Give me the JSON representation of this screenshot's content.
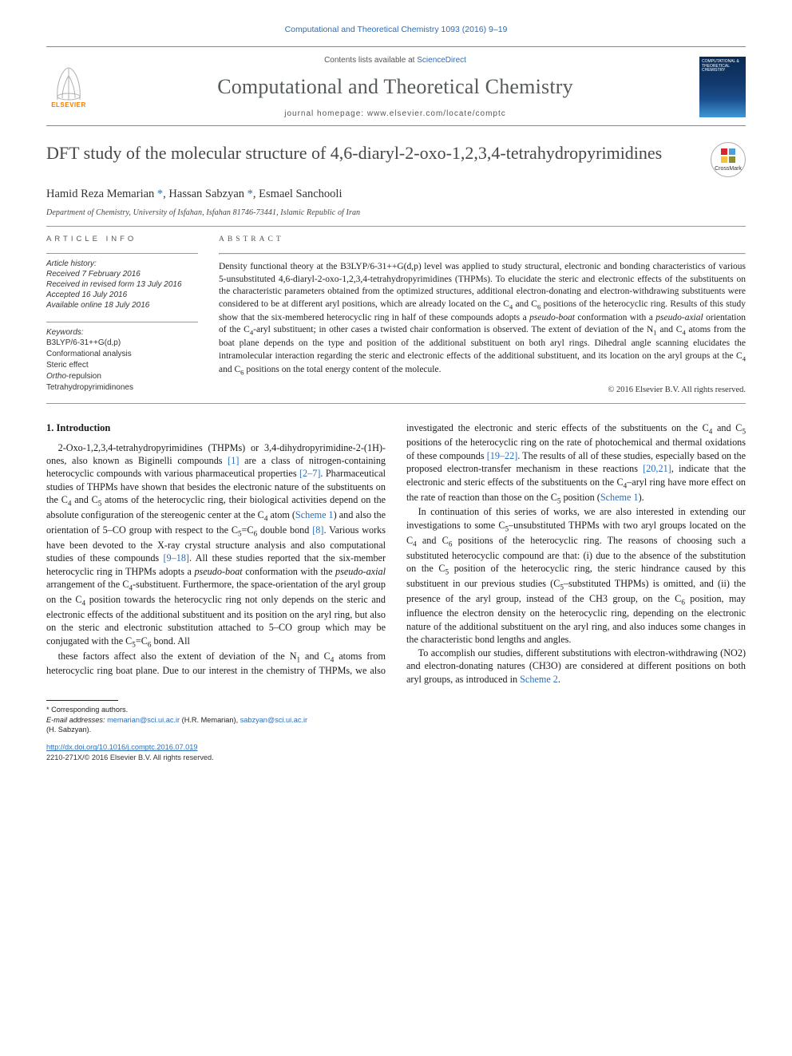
{
  "citation": "Computational and Theoretical Chemistry 1093 (2016) 9–19",
  "masthead": {
    "contents_prefix": "Contents lists available at ",
    "contents_link": "ScienceDirect",
    "journal_name": "Computational and Theoretical Chemistry",
    "homepage_label": "journal homepage: www.elsevier.com/locate/comptc",
    "publisher_name": "ELSEVIER",
    "cover_text": "COMPUTATIONAL & THEORETICAL CHEMISTRY"
  },
  "crossmark_label": "CrossMark",
  "title": "DFT study of the molecular structure of 4,6-diaryl-2-oxo-1,2,3,4-tetrahydropyrimidines",
  "authors_html": "Hamid Reza Memarian <a class='ref' href='#'>*</a>, Hassan Sabzyan <a class='ref' href='#'>*</a>, Esmael Sanchooli",
  "affiliation": "Department of Chemistry, University of Isfahan, Isfahan 81746-73441, Islamic Republic of Iran",
  "info": {
    "heading": "ARTICLE INFO",
    "history_label": "Article history:",
    "history": [
      "Received 7 February 2016",
      "Received in revised form 13 July 2016",
      "Accepted 16 July 2016",
      "Available online 18 July 2016"
    ],
    "keywords_label": "Keywords:",
    "keywords": [
      "B3LYP/6-31++G(d,p)",
      "Conformational analysis",
      "Steric effect",
      "Ortho-repulsion",
      "Tetrahydropyrimidinones"
    ]
  },
  "abstract": {
    "heading": "ABSTRACT",
    "text": "Density functional theory at the B3LYP/6-31++G(d,p) level was applied to study structural, electronic and bonding characteristics of various 5-unsubstituted 4,6-diaryl-2-oxo-1,2,3,4-tetrahydropyrimidines (THPMs). To elucidate the steric and electronic effects of the substituents on the characteristic parameters obtained from the optimized structures, additional electron-donating and electron-withdrawing substituents were considered to be at different aryl positions, which are already located on the C4 and C6 positions of the heterocyclic ring. Results of this study show that the six-membered heterocyclic ring in half of these compounds adopts a pseudo-boat conformation with a pseudo-axial orientation of the C4-aryl substituent; in other cases a twisted chair conformation is observed. The extent of deviation of the N1 and C4 atoms from the boat plane depends on the type and position of the additional substituent on both aryl rings. Dihedral angle scanning elucidates the intramolecular interaction regarding the steric and electronic effects of the additional substituent, and its location on the aryl groups at the C4 and C6 positions on the total energy content of the molecule.",
    "copyright": "© 2016 Elsevier B.V. All rights reserved."
  },
  "body": {
    "section1_heading": "1. Introduction",
    "p1": "2-Oxo-1,2,3,4-tetrahydropyrimidines (THPMs) or 3,4-dihydropyrimidine-2-(1H)-ones, also known as Biginelli compounds [1] are a class of nitrogen-containing heterocyclic compounds with various pharmaceutical properties [2–7]. Pharmaceutical studies of THPMs have shown that besides the electronic nature of the substituents on the C4 and C5 atoms of the heterocyclic ring, their biological activities depend on the absolute configuration of the stereogenic center at the C4 atom (Scheme 1) and also the orientation of 5–CO group with respect to the C5=C6 double bond [8]. Various works have been devoted to the X-ray crystal structure analysis and also computational studies of these compounds [9–18]. All these studies reported that the six-member heterocyclic ring in THPMs adopts a pseudo-boat conformation with the pseudo-axial arrangement of the C4-substituent. Furthermore, the space-orientation of the aryl group on the C4 position towards the heterocyclic ring not only depends on the steric and electronic effects of the additional substituent and its position on the aryl ring, but also on the steric and electronic substitution attached to 5–CO group which may be conjugated with the C5=C6 bond. All",
    "p2": "these factors affect also the extent of deviation of the N1 and C4 atoms from heterocyclic ring boat plane. Due to our interest in the chemistry of THPMs, we also investigated the electronic and steric effects of the substituents on the C4 and C5 positions of the heterocyclic ring on the rate of photochemical and thermal oxidations of these compounds [19–22]. The results of all of these studies, especially based on the proposed electron-transfer mechanism in these reactions [20,21], indicate that the electronic and steric effects of the substituents on the C4–aryl ring have more effect on the rate of reaction than those on the C5 position (Scheme 1).",
    "p3": "In continuation of this series of works, we are also interested in extending our investigations to some C5–unsubstituted THPMs with two aryl groups located on the C4 and C6 positions of the heterocyclic ring. The reasons of choosing such a substituted heterocyclic compound are that: (i) due to the absence of the substitution on the C5 position of the heterocyclic ring, the steric hindrance caused by this substituent in our previous studies (C5–substituted THPMs) is omitted, and (ii) the presence of the aryl group, instead of the CH3 group, on the C6 position, may influence the electron density on the heterocyclic ring, depending on the electronic nature of the additional substituent on the aryl ring, and also induces some changes in the characteristic bond lengths and angles.",
    "p4": "To accomplish our studies, different substitutions with electron-withdrawing (NO2) and electron-donating natures (CH3O) are considered at different positions on both aryl groups, as introduced in Scheme 2."
  },
  "footer": {
    "corresponding_label": "* Corresponding authors.",
    "email_label": "E-mail addresses:",
    "email1": "memarian@sci.ui.ac.ir",
    "email1_who": "(H.R. Memarian),",
    "email2": "sabzyan@sci.ui.ac.ir",
    "email2_who": "(H. Sabzyan).",
    "doi": "http://dx.doi.org/10.1016/j.comptc.2016.07.019",
    "issn_line": "2210-271X/© 2016 Elsevier B.V. All rights reserved."
  },
  "colors": {
    "link": "#2a6ebb",
    "publisher_orange": "#f57c00",
    "heading_gray": "#474747",
    "rule": "#999999"
  }
}
